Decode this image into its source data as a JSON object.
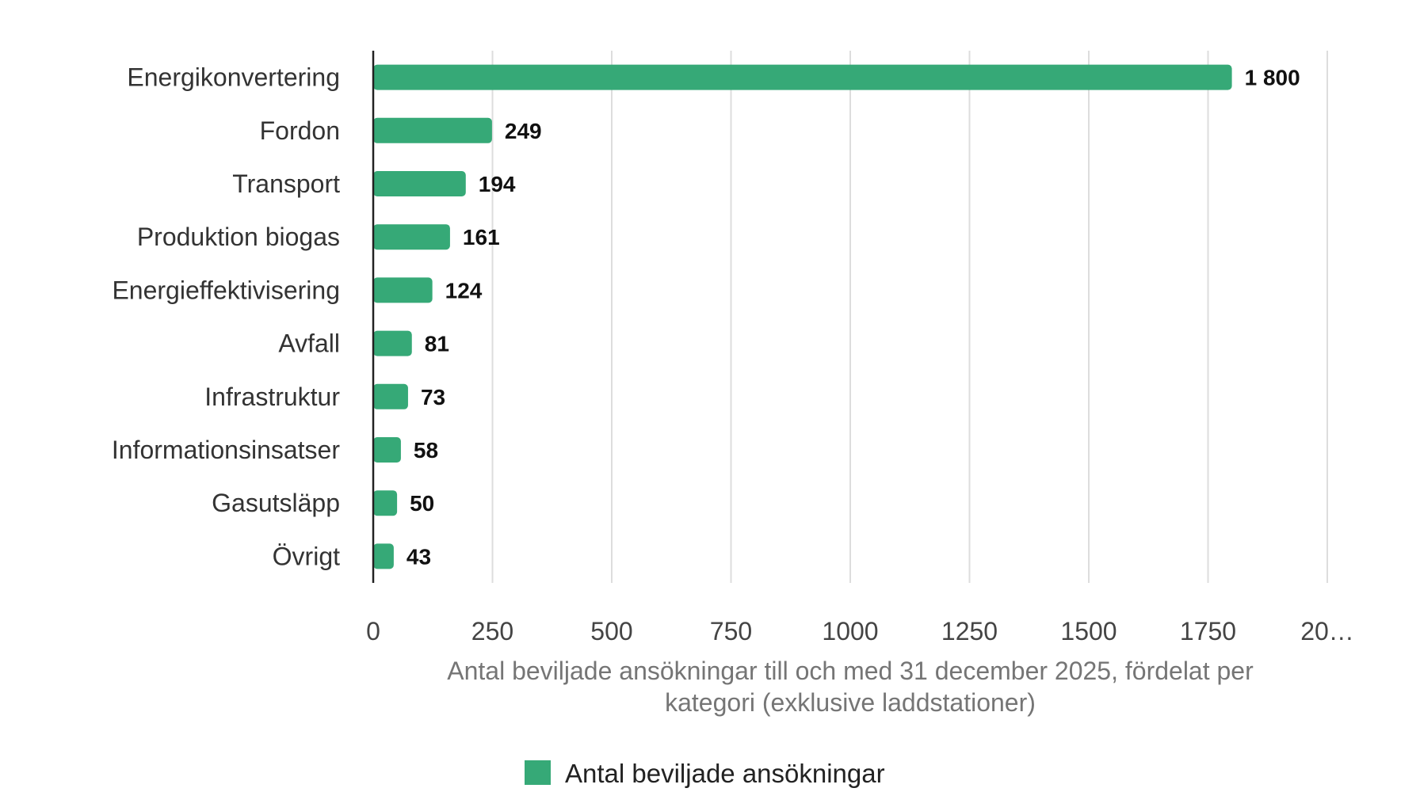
{
  "chart_data": {
    "type": "bar",
    "orientation": "horizontal",
    "categories": [
      "Energikonvertering",
      "Fordon",
      "Transport",
      "Produktion biogas",
      "Energieffektivisering",
      "Avfall",
      "Infrastruktur",
      "Informationsinsatser",
      "Gasutsläpp",
      "Övrigt"
    ],
    "values": [
      1800,
      249,
      194,
      161,
      124,
      81,
      73,
      58,
      50,
      43
    ],
    "value_labels": [
      "1 800",
      "249",
      "194",
      "161",
      "124",
      "81",
      "73",
      "58",
      "50",
      "43"
    ],
    "series": [
      {
        "name": "Antal beviljade ansökningar",
        "color": "#36a977"
      }
    ],
    "xlim": [
      0,
      2000
    ],
    "x_ticks": [
      "0",
      "250",
      "500",
      "750",
      "1000",
      "1250",
      "1500",
      "1750",
      "20…"
    ],
    "x_tick_values": [
      0,
      250,
      500,
      750,
      1000,
      1250,
      1500,
      1750,
      2000
    ],
    "xlabel_lines": [
      "Antal beviljade ansökningar till och med 31 december 2025, fördelat per",
      "kategori (exklusive laddstationer)"
    ],
    "grid": true,
    "legend": "bottom",
    "colors": {
      "bar": "#36a977",
      "grid": "#dddddd",
      "axis": "#222222"
    }
  }
}
